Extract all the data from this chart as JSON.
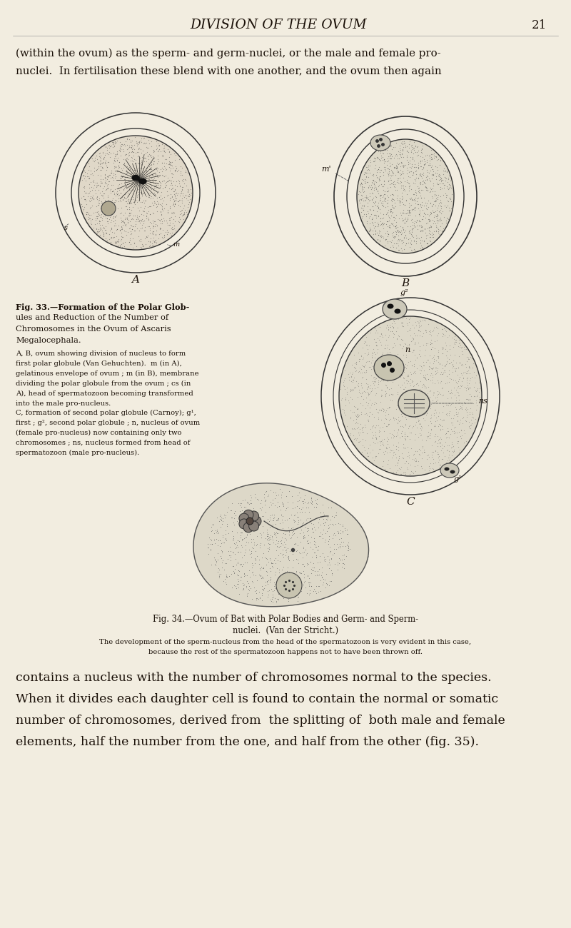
{
  "bg_color": "#f2ede0",
  "text_color": "#1a1008",
  "header_title": "DIVISION OF THE OVUM",
  "header_page": "21",
  "intro_line1": "(within the ovum) as the sperm- and germ-nuclei, or the male and female pro-",
  "intro_line2": "nuclei.  In fertilisation these blend with one another, and the ovum then again",
  "fig33_title": [
    "Fig. 33.—Formation of the Polar Glob-",
    "ules and Reduction of the Number of",
    "Chromosomes in the Ovum of Ascaris",
    "Megalocephala."
  ],
  "fig33_body": [
    "A, B, ovum showing division of nucleus to form",
    "first polar globule (Van Gehuchten).  m (in A),",
    "gelatinous envelope of ovum ; m (in B), membrane",
    "dividing the polar globule from the ovum ; cs (in",
    "A), head of spermatozoon becoming transformed",
    "into the male pro-nucleus.",
    "C, formation of second polar globule (Carnoy); g¹,",
    "first ; g², second polar globule ; n, nucleus of ovum",
    "(female pro-nucleus) now containing only two",
    "chromosomes ; ns, nucleus formed from head of",
    "spermatozoon (male pro-nucleus)."
  ],
  "fig34_cap1": "Fig. 34.—Ovum of Bat with Polar Bodies and Germ- and Sperm-",
  "fig34_cap2": "nuclei.  (Van der Stricht.)",
  "fig34_sub1": "The development of the sperm-nucleus from the head of the spermatozoon is very evident in this case,",
  "fig34_sub2": "because the rest of the spermatozoon happens not to have been thrown off.",
  "bottom1": "contains a nucleus with the number of chromosomes normal to the species.",
  "bottom2": "When it divides each daughter cell is found to contain the normal or somatic",
  "bottom3": "number of chromosomes, derived from  the splitting of  both male and female",
  "bottom4": "elements, half the number from the one, and half from the other (fig. 35)."
}
